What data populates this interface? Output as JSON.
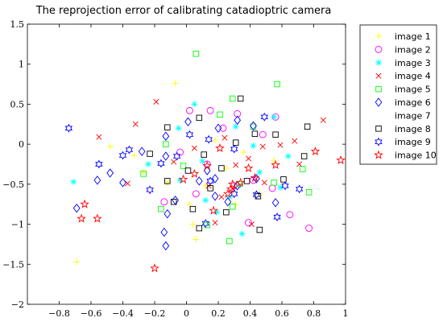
{
  "chart_data": {
    "type": "scatter",
    "title": "The reprojection error of calibrating catadioptric camera",
    "xlabel": "",
    "ylabel": "",
    "xlim": [
      -1,
      1
    ],
    "ylim": [
      -2,
      1.5
    ],
    "xticks": [
      "−0.8",
      "−0.6",
      "−0.4",
      "−0.2",
      "0",
      "0.2",
      "0.4",
      "0.6",
      "0.8",
      "1"
    ],
    "xtick_values": [
      -0.8,
      -0.6,
      -0.4,
      -0.2,
      0,
      0.2,
      0.4,
      0.6,
      0.8,
      1
    ],
    "yticks": [
      "1.5",
      "1",
      "0.5",
      "0",
      "−0.5",
      "−1",
      "−1.5",
      "−2"
    ],
    "ytick_values": [
      1.5,
      1,
      0.5,
      0,
      -0.5,
      -1,
      -1.5,
      -2
    ],
    "grid": false,
    "legend_position": "outside-right",
    "series": [
      {
        "name": "image 1",
        "marker": "plus",
        "color": "#FFFF00",
        "points": [
          [
            -0.48,
            -0.03
          ],
          [
            -0.69,
            -1.47
          ],
          [
            -0.07,
            0.76
          ],
          [
            0.06,
            -1.19
          ],
          [
            0.04,
            -1.0
          ],
          [
            -0.27,
            -0.35
          ],
          [
            0.12,
            -0.52
          ],
          [
            0.25,
            -0.3
          ],
          [
            0.36,
            -0.1
          ],
          [
            0.46,
            -0.62
          ],
          [
            -0.12,
            -0.48
          ],
          [
            0.18,
            0.05
          ],
          [
            0.02,
            -0.75
          ],
          [
            0.55,
            -0.2
          ],
          [
            0.31,
            -0.75
          ],
          [
            -0.33,
            -0.14
          ]
        ]
      },
      {
        "name": "image 2",
        "marker": "circle",
        "color": "#FF00FF",
        "points": [
          [
            0.02,
            0.42
          ],
          [
            0.15,
            0.42
          ],
          [
            0.32,
            0.38
          ],
          [
            0.56,
            0.34
          ],
          [
            0.77,
            -1.05
          ],
          [
            0.65,
            -0.88
          ],
          [
            0.39,
            -0.98
          ],
          [
            -0.14,
            -0.72
          ],
          [
            0.13,
            -0.25
          ],
          [
            0.42,
            -0.45
          ],
          [
            0.23,
            0.2
          ],
          [
            0.48,
            0.12
          ],
          [
            -0.04,
            -0.1
          ],
          [
            0.3,
            -0.52
          ],
          [
            0.06,
            -0.62
          ],
          [
            0.54,
            -0.55
          ]
        ]
      },
      {
        "name": "image 3",
        "marker": "asterisk",
        "color": "#00FFFF",
        "points": [
          [
            -0.71,
            -0.47
          ],
          [
            -0.04,
            -0.45
          ],
          [
            0.19,
            -0.85
          ],
          [
            0.35,
            -1.12
          ],
          [
            -0.24,
            -0.25
          ],
          [
            0.1,
            -0.21
          ],
          [
            0.05,
            0.5
          ],
          [
            0.31,
            0.22
          ],
          [
            0.55,
            0.34
          ],
          [
            0.64,
            -0.15
          ],
          [
            0.46,
            -0.35
          ],
          [
            -0.05,
            0.2
          ],
          [
            0.27,
            -0.66
          ],
          [
            0.42,
            -0.02
          ],
          [
            0.59,
            -0.54
          ],
          [
            0.12,
            -0.7
          ]
        ]
      },
      {
        "name": "image 4",
        "marker": "x",
        "color": "#FF0000",
        "points": [
          [
            -0.19,
            0.53
          ],
          [
            -0.32,
            0.25
          ],
          [
            -0.37,
            -0.49
          ],
          [
            0.24,
            0.08
          ],
          [
            0.48,
            -0.03
          ],
          [
            0.71,
            -0.25
          ],
          [
            0.86,
            0.3
          ],
          [
            0.18,
            -0.98
          ],
          [
            0.41,
            -1.0
          ],
          [
            0.05,
            -0.05
          ],
          [
            0.29,
            -0.55
          ],
          [
            -0.08,
            -0.22
          ],
          [
            0.31,
            -0.26
          ],
          [
            0.49,
            -0.48
          ],
          [
            0.14,
            -0.52
          ],
          [
            0.59,
            -0.01
          ],
          [
            0.22,
            -0.66
          ],
          [
            0.39,
            -0.18
          ],
          [
            -0.55,
            0.09
          ],
          [
            0.68,
            0.04
          ]
        ]
      },
      {
        "name": "image 5",
        "marker": "square",
        "color": "#00FF00",
        "points": [
          [
            0.06,
            1.13
          ],
          [
            0.57,
            0.75
          ],
          [
            0.29,
            0.57
          ],
          [
            0.73,
            -0.31
          ],
          [
            0.77,
            -0.6
          ],
          [
            0.33,
            -0.5
          ],
          [
            -0.02,
            -0.27
          ],
          [
            -0.13,
            0.0
          ],
          [
            0.21,
            0.37
          ],
          [
            0.42,
            0.22
          ],
          [
            0.29,
            -0.78
          ],
          [
            0.13,
            -1.01
          ],
          [
            0.27,
            -1.21
          ],
          [
            -0.16,
            -0.81
          ],
          [
            0.55,
            -0.48
          ],
          [
            -0.27,
            -0.37
          ]
        ]
      },
      {
        "name": "image 6",
        "marker": "diamond",
        "color": "#0000FF",
        "points": [
          [
            -0.69,
            -0.8
          ],
          [
            -0.56,
            -0.45
          ],
          [
            -0.48,
            -0.36
          ],
          [
            -0.4,
            -0.48
          ],
          [
            -0.28,
            -0.09
          ],
          [
            -0.13,
            0.1
          ],
          [
            -0.07,
            -0.7
          ],
          [
            -0.13,
            -0.15
          ],
          [
            0.01,
            0.28
          ],
          [
            0.2,
            0.2
          ],
          [
            0.32,
            0.3
          ],
          [
            0.08,
            -0.46
          ],
          [
            0.18,
            -0.65
          ],
          [
            0.42,
            0.23
          ],
          [
            -0.14,
            -1.1
          ],
          [
            -0.13,
            -1.27
          ],
          [
            -0.12,
            -0.87
          ],
          [
            0.13,
            -0.33
          ],
          [
            0.32,
            -0.52
          ],
          [
            0.44,
            -0.43
          ],
          [
            0.26,
            -0.72
          ],
          [
            0.56,
            -0.73
          ],
          [
            0.18,
            -0.43
          ]
        ]
      },
      {
        "name": "image 7",
        "marker": "none",
        "color": "#FFFFFF",
        "points": []
      },
      {
        "name": "image 8",
        "marker": "square",
        "color": "#000000",
        "points": [
          [
            -0.12,
            0.21
          ],
          [
            -0.23,
            -0.12
          ],
          [
            -0.12,
            -0.46
          ],
          [
            0.01,
            -0.33
          ],
          [
            0.11,
            -0.13
          ],
          [
            0.22,
            -0.3
          ],
          [
            0.34,
            0.57
          ],
          [
            0.45,
            -0.65
          ],
          [
            0.43,
            0.13
          ],
          [
            0.56,
            0.12
          ],
          [
            0.76,
            0.22
          ],
          [
            0.74,
            -0.15
          ],
          [
            0.04,
            -0.81
          ],
          [
            0.08,
            -1.05
          ],
          [
            0.25,
            -0.85
          ],
          [
            0.38,
            -0.46
          ],
          [
            -0.08,
            -0.72
          ],
          [
            0.31,
            0.02
          ],
          [
            0.15,
            -0.55
          ],
          [
            0.61,
            -0.44
          ],
          [
            0.46,
            -1.07
          ],
          [
            0.08,
            0.33
          ]
        ]
      },
      {
        "name": "image 9",
        "marker": "hexagram",
        "color": "#0000FF",
        "points": [
          [
            -0.74,
            0.2
          ],
          [
            -0.55,
            -0.25
          ],
          [
            -0.4,
            -0.14
          ],
          [
            -0.36,
            -0.07
          ],
          [
            -0.23,
            -0.57
          ],
          [
            -0.16,
            -0.24
          ],
          [
            0.02,
            0.12
          ],
          [
            0.14,
            0.06
          ],
          [
            0.3,
            -0.06
          ],
          [
            0.49,
            0.34
          ],
          [
            0.62,
            -0.52
          ],
          [
            0.71,
            -0.56
          ],
          [
            0.57,
            -0.91
          ],
          [
            0.44,
            -0.63
          ],
          [
            0.3,
            -0.62
          ],
          [
            0.12,
            -0.99
          ],
          [
            0.15,
            -0.46
          ],
          [
            -0.06,
            -0.15
          ]
        ]
      },
      {
        "name": "image 10",
        "marker": "pentagram",
        "color": "#FF0000",
        "points": [
          [
            -0.64,
            -0.75
          ],
          [
            -0.66,
            -0.93
          ],
          [
            -0.56,
            -0.93
          ],
          [
            -0.2,
            -1.55
          ],
          [
            0.17,
            -0.83
          ],
          [
            0.29,
            -0.5
          ],
          [
            0.26,
            -0.62
          ],
          [
            0.34,
            -0.48
          ],
          [
            0.43,
            -0.42
          ],
          [
            0.56,
            -0.26
          ],
          [
            0.97,
            -0.2
          ],
          [
            0.81,
            -0.09
          ],
          [
            0.05,
            -0.37
          ],
          [
            0.21,
            -0.05
          ],
          [
            0.13,
            -0.27
          ],
          [
            0.39,
            -0.3
          ],
          [
            -0.02,
            -0.44
          ],
          [
            0.28,
            -0.56
          ]
        ]
      }
    ]
  }
}
